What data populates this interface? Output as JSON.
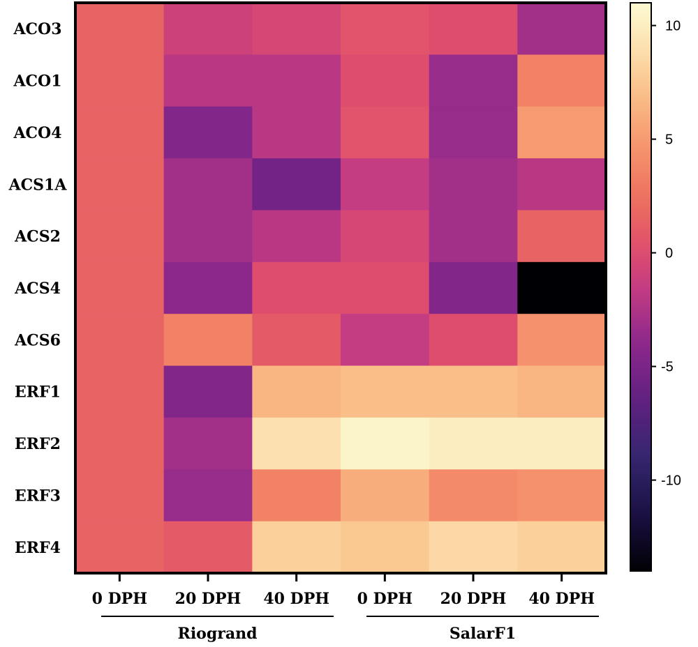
{
  "chart_data": {
    "type": "heatmap",
    "rows": [
      "ACO3",
      "ACO1",
      "ACO4",
      "ACS1A",
      "ACS2",
      "ACS4",
      "ACS6",
      "ERF1",
      "ERF2",
      "ERF3",
      "ERF4"
    ],
    "columns": [
      "0 DPH",
      "20 DPH",
      "40 DPH",
      "0 DPH",
      "20 DPH",
      "40 DPH"
    ],
    "groups": [
      {
        "name": "Riogrand",
        "span": [
          0,
          2
        ]
      },
      {
        "name": "SalarF1",
        "span": [
          3,
          5
        ]
      }
    ],
    "values": [
      [
        1.5,
        -1.0,
        -0.5,
        0.5,
        0.0,
        -3.0
      ],
      [
        1.5,
        -2.0,
        -2.0,
        0.0,
        -3.5,
        3.5
      ],
      [
        1.5,
        -4.5,
        -2.0,
        0.5,
        -3.5,
        5.0
      ],
      [
        1.5,
        -3.0,
        -5.5,
        -1.5,
        -3.0,
        -2.0
      ],
      [
        1.5,
        -3.0,
        -2.0,
        -0.5,
        -3.0,
        1.5
      ],
      [
        1.5,
        -4.0,
        0.0,
        0.0,
        -4.5,
        -14.0
      ],
      [
        1.5,
        3.5,
        1.0,
        -1.5,
        0.0,
        4.5
      ],
      [
        1.5,
        -4.5,
        6.5,
        7.0,
        7.0,
        6.5
      ],
      [
        1.5,
        -3.0,
        9.0,
        10.5,
        10.0,
        10.0
      ],
      [
        1.5,
        -3.5,
        3.5,
        6.0,
        4.0,
        4.5
      ],
      [
        1.5,
        1.0,
        8.0,
        7.5,
        8.5,
        8.0
      ]
    ],
    "colorbar": {
      "min": -14,
      "max": 11,
      "ticks": [
        10,
        5,
        0,
        -5,
        -10
      ],
      "colormap": "magma"
    },
    "xlabel": "",
    "ylabel": "",
    "title": ""
  }
}
